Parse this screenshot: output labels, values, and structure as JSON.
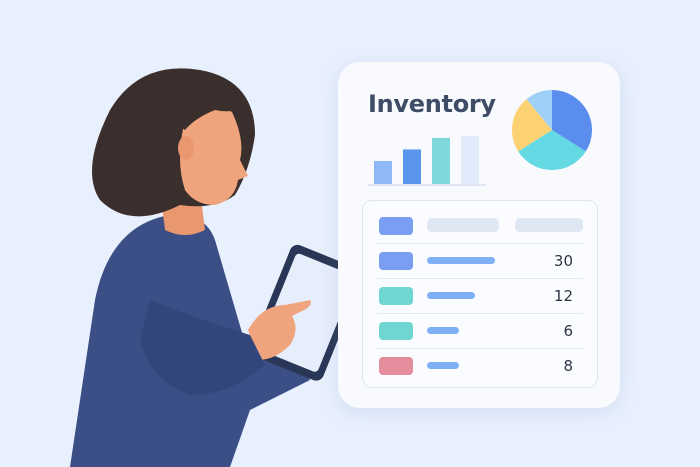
{
  "card": {
    "title": "Inventory",
    "bar_chart": {
      "levels": [
        0.48,
        0.72,
        0.96,
        1.0
      ],
      "colors": [
        "#8fb8f7",
        "#5b95ec",
        "#7ed8dc",
        "#e1ebfb"
      ]
    },
    "pie_chart": {
      "slices": [
        {
          "share": 0.34,
          "color": "#5b8def"
        },
        {
          "share": 0.32,
          "color": "#62d9e3"
        },
        {
          "share": 0.23,
          "color": "#fdd273"
        },
        {
          "share": 0.11,
          "color": "#9fd0f8"
        }
      ]
    },
    "table": {
      "header_color": "#7a9ff2",
      "rows": [
        {
          "value": "30",
          "color": "#7a9ff2",
          "bar_fraction": 1.0
        },
        {
          "value": "12",
          "color": "#6fd6d2",
          "bar_fraction": 0.7
        },
        {
          "value": "6",
          "color": "#6fd6d2",
          "bar_fraction": 0.47
        },
        {
          "value": "8",
          "color": "#e58d9c",
          "bar_fraction": 0.47
        }
      ]
    }
  },
  "colors": {
    "background": "#e8f0fd",
    "hair": "#3b2f2d",
    "skin": "#f0a47e",
    "shirt": "#3b4f86",
    "tablet": "#2a3655"
  }
}
